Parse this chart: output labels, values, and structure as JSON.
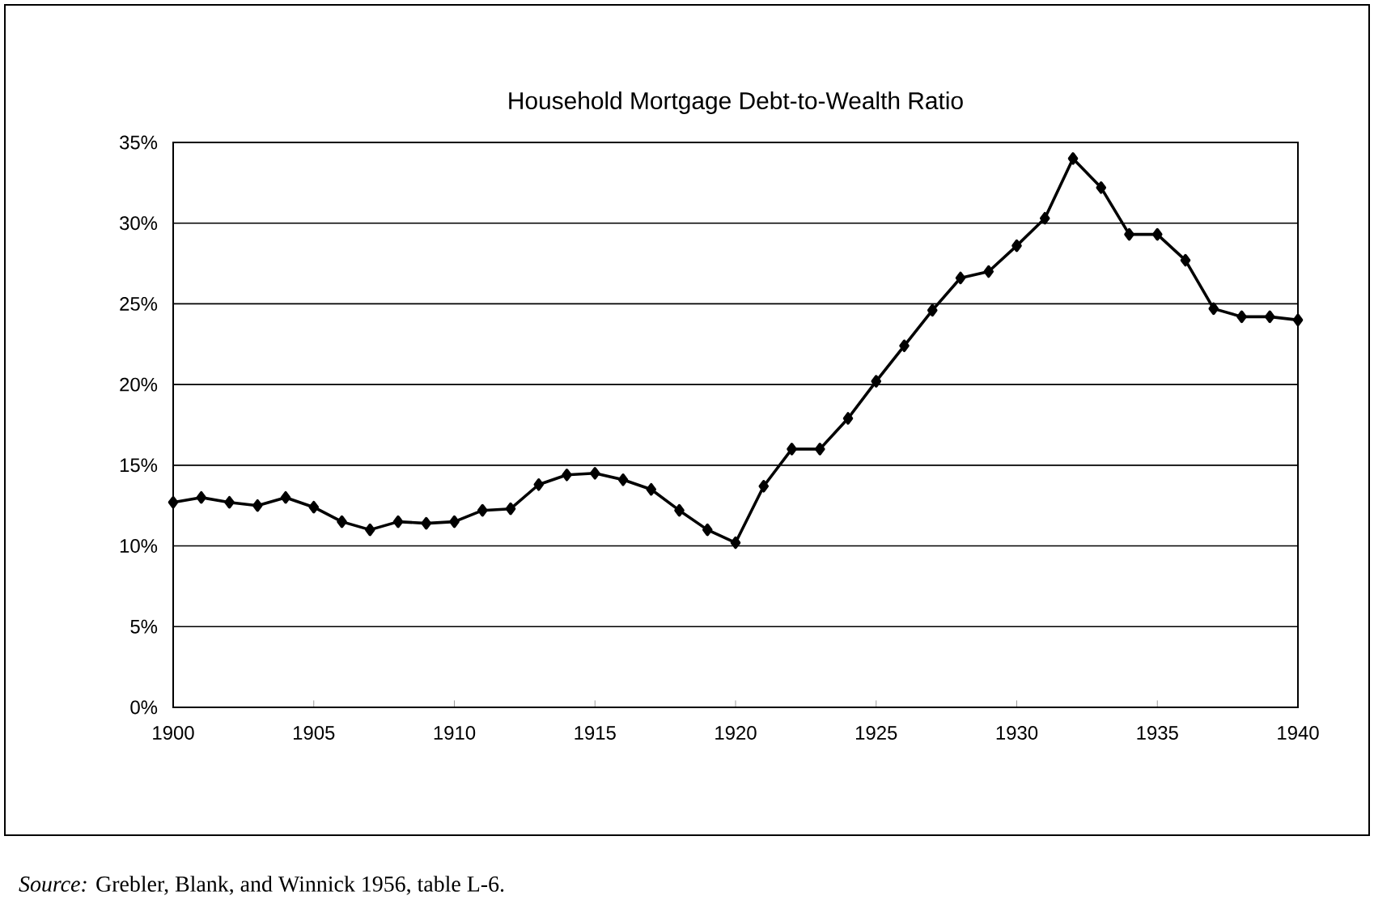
{
  "chart_data": {
    "type": "line",
    "title": "Household Mortgage Debt-to-Wealth Ratio",
    "x": [
      1900,
      1901,
      1902,
      1903,
      1904,
      1905,
      1906,
      1907,
      1908,
      1909,
      1910,
      1911,
      1912,
      1913,
      1914,
      1915,
      1916,
      1917,
      1918,
      1919,
      1920,
      1921,
      1922,
      1923,
      1924,
      1925,
      1926,
      1927,
      1928,
      1929,
      1930,
      1931,
      1932,
      1933,
      1934,
      1935,
      1936,
      1937,
      1938,
      1939,
      1940
    ],
    "values": [
      12.7,
      13.0,
      12.7,
      12.5,
      13.0,
      12.4,
      11.5,
      11.0,
      11.5,
      11.4,
      11.5,
      12.2,
      12.3,
      13.8,
      14.4,
      14.5,
      14.1,
      13.5,
      12.2,
      11.0,
      10.2,
      13.7,
      16.0,
      16.0,
      17.9,
      20.2,
      22.4,
      24.6,
      26.6,
      27.0,
      28.6,
      30.3,
      34.0,
      32.2,
      29.3,
      29.3,
      27.7,
      24.7,
      24.2,
      24.2,
      24.0
    ],
    "color": "#000000",
    "marker": "diamond",
    "line_style": "solid",
    "grid": "y",
    "xlim": [
      1900,
      1940
    ],
    "xticks": [
      1900,
      1905,
      1910,
      1915,
      1920,
      1925,
      1930,
      1935,
      1940
    ],
    "ylim": [
      0,
      35
    ],
    "yticks": [
      {
        "value": 0,
        "label": "0%"
      },
      {
        "value": 5,
        "label": "5%"
      },
      {
        "value": 10,
        "label": "10%"
      },
      {
        "value": 15,
        "label": "15%"
      },
      {
        "value": 20,
        "label": "20%"
      },
      {
        "value": 25,
        "label": "25%"
      },
      {
        "value": 30,
        "label": "30%"
      },
      {
        "value": 35,
        "label": "35%"
      }
    ],
    "annotations": [
      "*Source:* Grebler, Blank, and Winnick 1956, table L-6."
    ]
  }
}
